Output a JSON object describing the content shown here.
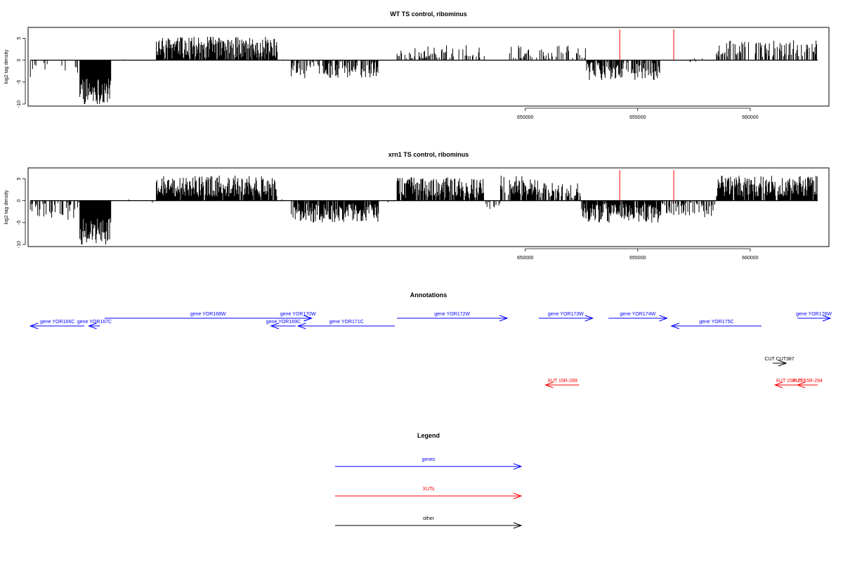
{
  "colors": {
    "gene": "#0000ff",
    "xut": "#ff0000",
    "other": "#000000",
    "marker": "#ff0000",
    "bars": "#000000"
  },
  "chart_data": [
    {
      "type": "bar",
      "title": "WT TS control, ribominus",
      "ylabel": "log2 tag density",
      "xlim": [
        627900,
        663500
      ],
      "ylim": [
        -10,
        7
      ],
      "x_ticks": [
        650000,
        655000,
        660000
      ],
      "x_tick_labels": [
        "650000",
        "655000",
        "660000"
      ],
      "y_ticks": [
        -10,
        -5,
        0,
        5
      ],
      "y_tick_labels": [
        "-10",
        "-5",
        "0",
        "5"
      ],
      "genome_range": [
        628000,
        663000
      ],
      "marker_x": [
        654200,
        656600
      ],
      "marker_height": 7,
      "segments": [
        {
          "start": 628000,
          "end": 630200,
          "mean": -2.0,
          "noise": 1.2,
          "density": 0.15
        },
        {
          "start": 630200,
          "end": 631600,
          "mean": -7.0,
          "noise": 2.0,
          "density": 1.0
        },
        {
          "start": 631600,
          "end": 633600,
          "mean": 0.0,
          "noise": 0.3,
          "density": 0.05
        },
        {
          "start": 633600,
          "end": 639000,
          "mean": 2.8,
          "noise": 1.6,
          "density": 0.9
        },
        {
          "start": 639000,
          "end": 639600,
          "mean": 0.0,
          "noise": 0.3,
          "density": 0.05
        },
        {
          "start": 639600,
          "end": 643500,
          "mean": -2.2,
          "noise": 1.2,
          "density": 0.55
        },
        {
          "start": 643500,
          "end": 644300,
          "mean": 0.0,
          "noise": 0.3,
          "density": 0.05
        },
        {
          "start": 644300,
          "end": 648200,
          "mean": 1.5,
          "noise": 1.2,
          "density": 0.35
        },
        {
          "start": 648200,
          "end": 649300,
          "mean": 0.0,
          "noise": 0.3,
          "density": 0.05
        },
        {
          "start": 649300,
          "end": 652700,
          "mean": 1.5,
          "noise": 1.2,
          "density": 0.3
        },
        {
          "start": 652700,
          "end": 653700,
          "mean": -2.5,
          "noise": 1.3,
          "density": 0.7
        },
        {
          "start": 653700,
          "end": 656000,
          "mean": -2.5,
          "noise": 1.3,
          "density": 0.7
        },
        {
          "start": 656000,
          "end": 658500,
          "mean": 0.0,
          "noise": 0.3,
          "density": 0.05
        },
        {
          "start": 658500,
          "end": 663000,
          "mean": 2.5,
          "noise": 1.3,
          "density": 0.45
        }
      ]
    },
    {
      "type": "bar",
      "title": "xrn1 TS control, ribominus",
      "ylabel": "log2 tag density",
      "xlim": [
        627900,
        663500
      ],
      "ylim": [
        -10,
        7
      ],
      "x_ticks": [
        650000,
        655000,
        660000
      ],
      "x_tick_labels": [
        "650000",
        "655000",
        "660000"
      ],
      "y_ticks": [
        -10,
        -5,
        0,
        5
      ],
      "y_tick_labels": [
        "-10",
        "-5",
        "0",
        "5"
      ],
      "genome_range": [
        628000,
        663000
      ],
      "marker_x": [
        654200,
        656600
      ],
      "marker_height": 7,
      "segments": [
        {
          "start": 628000,
          "end": 630200,
          "mean": -2.0,
          "noise": 1.5,
          "density": 0.45
        },
        {
          "start": 630200,
          "end": 631600,
          "mean": -7.0,
          "noise": 2.0,
          "density": 1.0
        },
        {
          "start": 631600,
          "end": 633600,
          "mean": 0.0,
          "noise": 0.3,
          "density": 0.05
        },
        {
          "start": 633600,
          "end": 639000,
          "mean": 3.3,
          "noise": 1.5,
          "density": 0.95
        },
        {
          "start": 639000,
          "end": 639600,
          "mean": 0.0,
          "noise": 0.3,
          "density": 0.05
        },
        {
          "start": 639600,
          "end": 643500,
          "mean": -2.8,
          "noise": 1.4,
          "density": 0.9
        },
        {
          "start": 643500,
          "end": 644300,
          "mean": 0.0,
          "noise": 0.3,
          "density": 0.05
        },
        {
          "start": 644300,
          "end": 648200,
          "mean": 3.0,
          "noise": 1.5,
          "density": 0.9
        },
        {
          "start": 648200,
          "end": 648900,
          "mean": -1.0,
          "noise": 0.7,
          "density": 0.3
        },
        {
          "start": 648900,
          "end": 650600,
          "mean": 3.3,
          "noise": 1.5,
          "density": 0.9
        },
        {
          "start": 650600,
          "end": 652500,
          "mean": 2.2,
          "noise": 1.2,
          "density": 0.6
        },
        {
          "start": 652500,
          "end": 656000,
          "mean": -2.8,
          "noise": 1.4,
          "density": 0.9
        },
        {
          "start": 656000,
          "end": 658500,
          "mean": -2.0,
          "noise": 1.2,
          "density": 0.5
        },
        {
          "start": 658500,
          "end": 663000,
          "mean": 3.3,
          "noise": 1.5,
          "density": 0.9
        }
      ]
    }
  ],
  "annotations": {
    "title": "Annotations",
    "features": [
      {
        "label": "gene YOR166C",
        "kind": "gene",
        "start": 628000,
        "end": 630400,
        "strand": "-",
        "lane": 1
      },
      {
        "label": "gene YOR167C",
        "kind": "gene",
        "start": 630600,
        "end": 631100,
        "strand": "-",
        "lane": 1
      },
      {
        "label": "gene YOR168W",
        "kind": "gene",
        "start": 631300,
        "end": 640500,
        "strand": "+",
        "lane": 0
      },
      {
        "label": "gene YOR169C",
        "kind": "gene",
        "start": 638700,
        "end": 639800,
        "strand": "-",
        "lane": 1
      },
      {
        "label": "gene YOR170W",
        "kind": "gene",
        "start": 639300,
        "end": 640500,
        "strand": "+",
        "lane": 0
      },
      {
        "label": "gene YOR171C",
        "kind": "gene",
        "start": 639900,
        "end": 644200,
        "strand": "-",
        "lane": 1
      },
      {
        "label": "gene YOR172W",
        "kind": "gene",
        "start": 644300,
        "end": 649200,
        "strand": "+",
        "lane": 0
      },
      {
        "label": "gene YOR173W",
        "kind": "gene",
        "start": 650600,
        "end": 653000,
        "strand": "+",
        "lane": 0
      },
      {
        "label": "gene YOR174W",
        "kind": "gene",
        "start": 653700,
        "end": 656300,
        "strand": "+",
        "lane": 0
      },
      {
        "label": "gene YOR175C",
        "kind": "gene",
        "start": 656500,
        "end": 660500,
        "strand": "-",
        "lane": 1
      },
      {
        "label": "gene YOR176W",
        "kind": "gene",
        "start": 662100,
        "end": 664500,
        "strand": "+",
        "lane": 0
      },
      {
        "label": "CUT CUT387",
        "kind": "other",
        "start": 661000,
        "end": 661600,
        "strand": "+",
        "lane": 2
      },
      {
        "label": "XUT 15R-289",
        "kind": "xut",
        "start": 650900,
        "end": 652400,
        "strand": "-",
        "lane": 3
      },
      {
        "label": "XUT 15R-293",
        "kind": "xut",
        "start": 661100,
        "end": 662500,
        "strand": "-",
        "lane": 3
      },
      {
        "label": "XUT 15R-294",
        "kind": "xut",
        "start": 662100,
        "end": 663000,
        "strand": "-",
        "lane": 3
      }
    ]
  },
  "legend": {
    "title": "Legend",
    "items": [
      {
        "label": "genes",
        "kind": "gene"
      },
      {
        "label": "XUTs",
        "kind": "xut"
      },
      {
        "label": "other",
        "kind": "other"
      }
    ]
  }
}
